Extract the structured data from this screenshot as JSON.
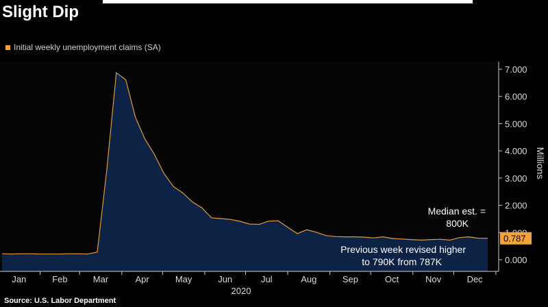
{
  "title": "Slight Dip",
  "legend": {
    "label": "Initial weekly unemployment claims (SA)",
    "color": "#f3a33b"
  },
  "source": "Source: U.S. Labor Department",
  "colors": {
    "background": "#000000",
    "area_fill": "#0c2345",
    "line": "#e39a3c",
    "last_value_bg": "#f3a33b",
    "text": "#ffffff",
    "axis_text": "#d9d9d9",
    "gridline": "#3a3a3a"
  },
  "chart_data": {
    "type": "area",
    "title": "Slight Dip",
    "xlabel": "2020",
    "ylabel": "Millions",
    "ylim": [
      0,
      7.2
    ],
    "y_ticks": [
      "7.000",
      "6.000",
      "5.000",
      "4.000",
      "3.000",
      "2.000",
      "1.000",
      "0.000"
    ],
    "y_axis_position": "right",
    "grid": false,
    "legend_position": "top-left",
    "month_labels": [
      "Jan",
      "Feb",
      "Mar",
      "Apr",
      "May",
      "Jun",
      "Jul",
      "Aug",
      "Sep",
      "Oct",
      "Nov",
      "Dec"
    ],
    "series": [
      {
        "name": "Initial weekly unemployment claims (SA)",
        "points": [
          [
            "2020-01-04",
            0.22
          ],
          [
            "2020-01-11",
            0.21
          ],
          [
            "2020-01-18",
            0.22
          ],
          [
            "2020-01-25",
            0.22
          ],
          [
            "2020-02-01",
            0.21
          ],
          [
            "2020-02-08",
            0.21
          ],
          [
            "2020-02-15",
            0.21
          ],
          [
            "2020-02-22",
            0.22
          ],
          [
            "2020-02-29",
            0.22
          ],
          [
            "2020-03-07",
            0.21
          ],
          [
            "2020-03-14",
            0.28
          ],
          [
            "2020-03-21",
            3.3
          ],
          [
            "2020-03-28",
            6.87
          ],
          [
            "2020-04-04",
            6.61
          ],
          [
            "2020-04-11",
            5.24
          ],
          [
            "2020-04-18",
            4.44
          ],
          [
            "2020-04-25",
            3.87
          ],
          [
            "2020-05-02",
            3.17
          ],
          [
            "2020-05-09",
            2.69
          ],
          [
            "2020-05-16",
            2.45
          ],
          [
            "2020-05-23",
            2.12
          ],
          [
            "2020-05-30",
            1.9
          ],
          [
            "2020-06-06",
            1.54
          ],
          [
            "2020-06-13",
            1.51
          ],
          [
            "2020-06-20",
            1.48
          ],
          [
            "2020-06-27",
            1.41
          ],
          [
            "2020-07-04",
            1.31
          ],
          [
            "2020-07-11",
            1.3
          ],
          [
            "2020-07-18",
            1.42
          ],
          [
            "2020-07-25",
            1.43
          ],
          [
            "2020-08-01",
            1.19
          ],
          [
            "2020-08-08",
            0.96
          ],
          [
            "2020-08-15",
            1.1
          ],
          [
            "2020-08-22",
            1.01
          ],
          [
            "2020-08-29",
            0.89
          ],
          [
            "2020-09-05",
            0.85
          ],
          [
            "2020-09-12",
            0.84
          ],
          [
            "2020-09-19",
            0.84
          ],
          [
            "2020-09-26",
            0.83
          ],
          [
            "2020-10-03",
            0.8
          ],
          [
            "2020-10-10",
            0.84
          ],
          [
            "2020-10-17",
            0.78
          ],
          [
            "2020-10-24",
            0.76
          ],
          [
            "2020-10-31",
            0.74
          ],
          [
            "2020-11-07",
            0.72
          ],
          [
            "2020-11-14",
            0.74
          ],
          [
            "2020-11-21",
            0.75
          ],
          [
            "2020-11-28",
            0.72
          ],
          [
            "2020-12-05",
            0.81
          ],
          [
            "2020-12-12",
            0.84
          ],
          [
            "2020-12-19",
            0.79
          ],
          [
            "2020-12-26",
            0.787
          ]
        ]
      }
    ],
    "last_value_label": "0.787",
    "annotations": [
      {
        "id": "median",
        "lines": [
          "Median est. =",
          "800K"
        ]
      },
      {
        "id": "revised",
        "lines": [
          "Previous week revised higher",
          "to 790K from 787K"
        ]
      }
    ]
  }
}
